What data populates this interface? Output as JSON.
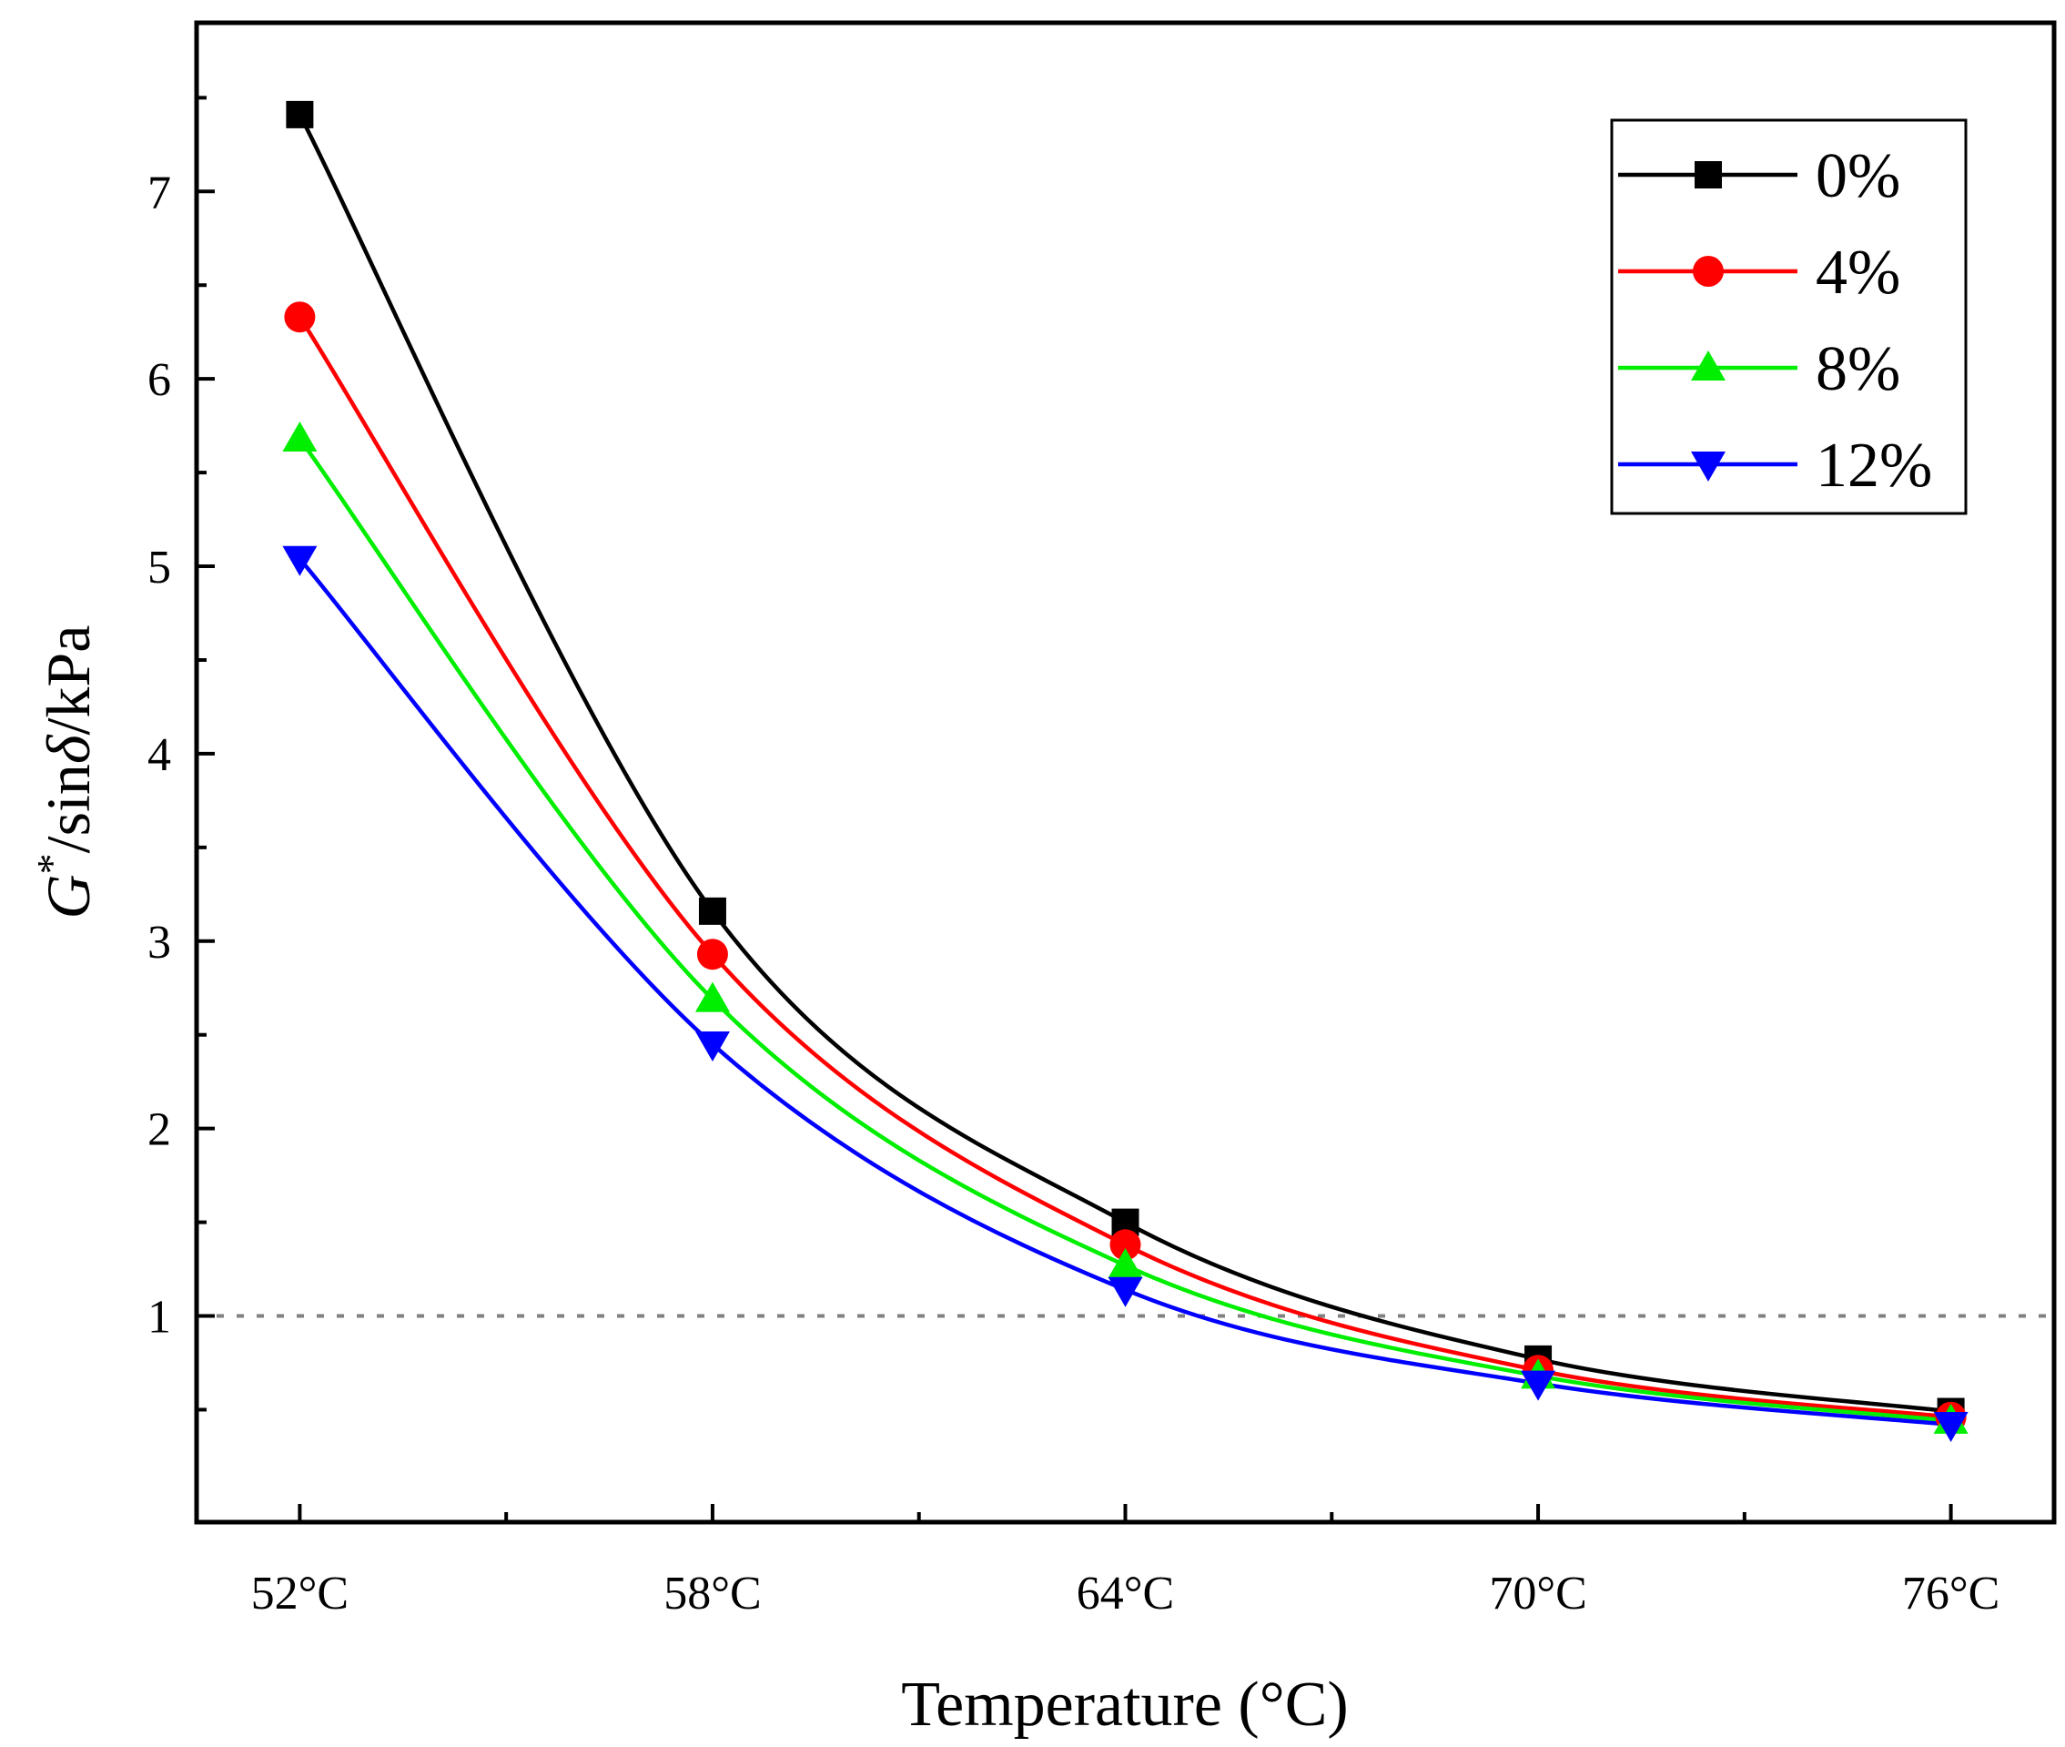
{
  "chart_data": {
    "type": "line",
    "title": "",
    "xlabel": "Temperature (°C)",
    "ylabel": {
      "g": "G",
      "star": "*",
      "mid": "/sin",
      "delta": "δ",
      "unit": "/kPa"
    },
    "categories": [
      "52°C",
      "58°C",
      "64°C",
      "70°C",
      "76°C"
    ],
    "x": [
      52,
      58,
      64,
      70,
      76
    ],
    "xlim": [
      50.5,
      77.5
    ],
    "ylim": [
      -0.1,
      7.9
    ],
    "yticks": [
      1,
      2,
      3,
      4,
      5,
      6,
      7
    ],
    "reference_line": {
      "y": 1,
      "style": "dotted",
      "color": "#808080"
    },
    "legend_position": "top-right",
    "series": [
      {
        "name": "0%",
        "color": "#000000",
        "marker": "square",
        "values": [
          7.41,
          3.16,
          1.5,
          0.77,
          0.49
        ]
      },
      {
        "name": "4%",
        "color": "#ff0000",
        "marker": "circle",
        "values": [
          6.33,
          2.93,
          1.38,
          0.71,
          0.46
        ]
      },
      {
        "name": "8%",
        "color": "#00ee00",
        "marker": "triangle-up",
        "values": [
          5.68,
          2.69,
          1.27,
          0.68,
          0.44
        ]
      },
      {
        "name": "12%",
        "color": "#0000ff",
        "marker": "triangle-down",
        "values": [
          5.04,
          2.45,
          1.14,
          0.64,
          0.42
        ]
      }
    ]
  }
}
